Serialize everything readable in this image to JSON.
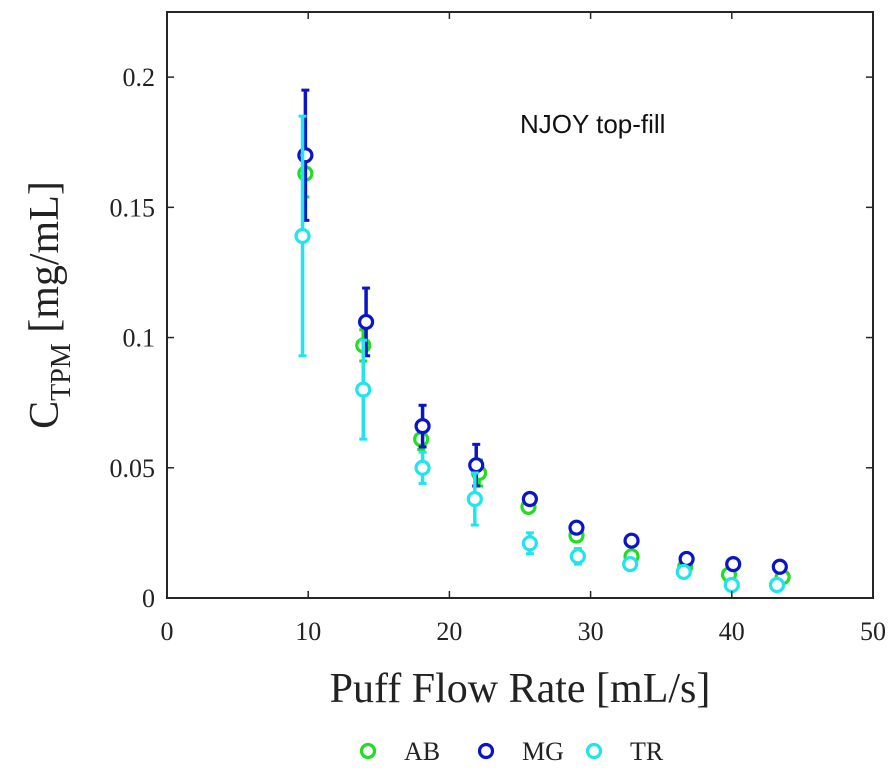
{
  "chart_data": {
    "type": "scatter",
    "annotation": "NJOY top-fill",
    "xlabel": "Puff Flow Rate [mL/s]",
    "ylabel": {
      "main": "C",
      "sub": "TPM",
      "rest": " [mg/mL]"
    },
    "xlim": [
      0,
      50
    ],
    "ylim": [
      0,
      0.225
    ],
    "xticks": [
      0,
      10,
      20,
      30,
      40,
      50
    ],
    "yticks": [
      0,
      0.05,
      0.1,
      0.15,
      0.2
    ],
    "xtick_labels": [
      "0",
      "10",
      "20",
      "30",
      "40",
      "50"
    ],
    "ytick_labels": [
      "0",
      "0.05",
      "0.1",
      "0.15",
      "0.2"
    ],
    "grid": false,
    "legend_position": "bottom",
    "series": [
      {
        "name": "AB",
        "color": "#22dd22",
        "x": [
          9.8,
          13.9,
          18.0,
          22.1,
          25.6,
          29.0,
          32.9,
          36.7,
          39.8,
          43.6
        ],
        "y": [
          0.163,
          0.097,
          0.061,
          0.048,
          0.035,
          0.024,
          0.016,
          0.012,
          0.009,
          0.008
        ],
        "err": [
          0.009,
          0.006,
          0.004,
          0.005,
          0.002,
          0.002,
          0.002,
          0.001,
          0.001,
          0.001
        ]
      },
      {
        "name": "MG",
        "color": "#0a14c8",
        "x": [
          9.8,
          14.1,
          18.1,
          21.9,
          25.7,
          29.0,
          32.9,
          36.8,
          40.1,
          43.4
        ],
        "y": [
          0.17,
          0.106,
          0.066,
          0.051,
          0.038,
          0.027,
          0.022,
          0.015,
          0.013,
          0.012
        ],
        "err": [
          0.025,
          0.013,
          0.008,
          0.008,
          0.002,
          0.002,
          0.001,
          0.001,
          0.001,
          0.001
        ]
      },
      {
        "name": "TR",
        "color": "#22e4ee",
        "x": [
          9.6,
          13.9,
          18.1,
          21.8,
          25.7,
          29.1,
          32.8,
          36.6,
          40.0,
          43.2
        ],
        "y": [
          0.139,
          0.08,
          0.05,
          0.038,
          0.021,
          0.016,
          0.013,
          0.01,
          0.005,
          0.005
        ],
        "err": [
          0.046,
          0.019,
          0.006,
          0.01,
          0.004,
          0.003,
          0.002,
          0.002,
          0.001,
          0.001
        ]
      }
    ]
  }
}
